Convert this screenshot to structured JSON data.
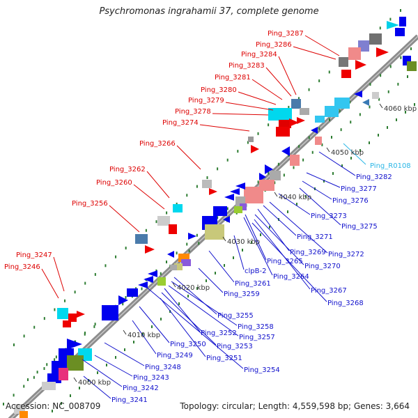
{
  "title": "Psychromonas ingrahamii 37, complete genome",
  "accession": "Accession: NC_008709",
  "topology": "Topology: circular; Length: 4,559,598 bp; Genes: 3,664",
  "colors": {
    "forward_label": "#dd0000",
    "reverse_label": "#1010cc",
    "rna_label": "#29b6e6",
    "backbone": "#8c8c8c",
    "tick": "#2e7d32"
  },
  "kbp_marks": [
    "4000 kbp",
    "4010 kbp",
    "4020 kbp",
    "4030 kbp",
    "4040 kbp",
    "4050 kbp",
    "4060 kbp"
  ],
  "top_labels": [
    "Ping_3287",
    "Ping_3286",
    "Ping_3284",
    "Ping_3283",
    "Ping_3281",
    "Ping_3280",
    "Ping_3279",
    "Ping_3278",
    "Ping_3274",
    "Ping_3266",
    "Ping_3262",
    "Ping_3260",
    "Ping_3256",
    "Ping_3247",
    "Ping_3246"
  ],
  "bottom_labels": [
    "Ping_R0108",
    "Ping_3282",
    "Ping_3277",
    "Ping_3276",
    "Ping_3275",
    "Ping_3273",
    "Ping_3272",
    "Ping_3271",
    "Ping_3269",
    "Ping_3270",
    "Ping_3265",
    "Ping_3264",
    "clpB-2",
    "Ping_3261",
    "Ping_3267",
    "Ping_3268",
    "Ping_3259",
    "Ping_3255",
    "Ping_3258",
    "Ping_3257",
    "Ping_3252",
    "Ping_3253",
    "Ping_3250",
    "Ping_3251",
    "Ping_3249",
    "Ping_3254",
    "Ping_3248",
    "Ping_3243",
    "Ping_3242",
    "Ping_3241"
  ]
}
